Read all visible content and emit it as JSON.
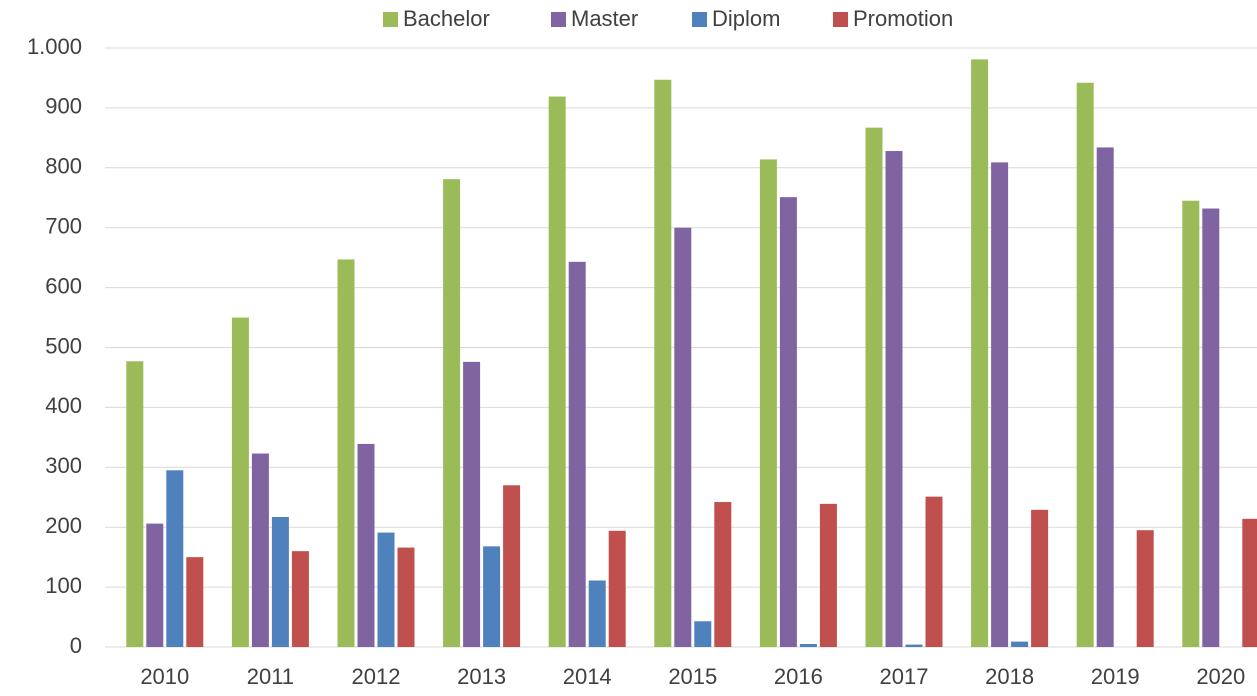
{
  "chart_data": {
    "type": "bar",
    "categories": [
      "2010",
      "2011",
      "2012",
      "2013",
      "2014",
      "2015",
      "2016",
      "2017",
      "2018",
      "2019",
      "2020"
    ],
    "series": [
      {
        "name": "Bachelor",
        "color": "#9bbb59",
        "values": [
          477,
          550,
          647,
          781,
          919,
          947,
          814,
          867,
          981,
          942,
          745
        ]
      },
      {
        "name": "Master",
        "color": "#8064a2",
        "values": [
          206,
          323,
          339,
          476,
          643,
          700,
          751,
          828,
          809,
          834,
          732
        ]
      },
      {
        "name": "Diplom",
        "color": "#4f81bd",
        "values": [
          295,
          217,
          191,
          168,
          111,
          43,
          5,
          4,
          9,
          null,
          null
        ]
      },
      {
        "name": "Promotion",
        "color": "#c0504d",
        "values": [
          150,
          160,
          166,
          270,
          194,
          242,
          239,
          251,
          229,
          195,
          214
        ]
      }
    ],
    "ylim": [
      0,
      1000
    ],
    "yticks": [
      0,
      100,
      200,
      300,
      400,
      500,
      600,
      700,
      800,
      900,
      {
        "value": 1000,
        "label": "1.000"
      }
    ],
    "grid": true,
    "legend": "top"
  }
}
